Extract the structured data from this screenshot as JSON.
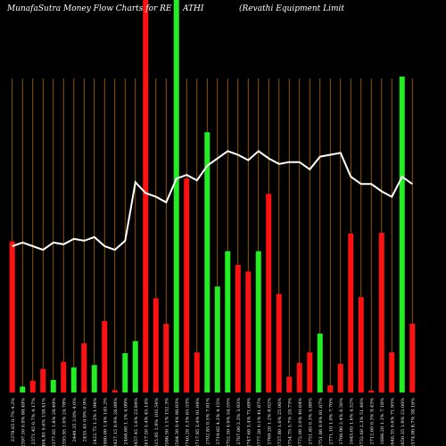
{
  "title_left": "MunafaSutra  Money Flow  Charts for RE",
  "title_mid": "ATHI",
  "title_right": "(Revathi    Equipment Limit",
  "colors": {
    "background": "#000000",
    "grid": "#b36b00",
    "up": "#22ee22",
    "down": "#ff1111",
    "line": "#ffffff",
    "text": "#ffffff"
  },
  "chart_data": {
    "type": "bar",
    "series_line": "price",
    "ylim_bar": [
      0,
      100
    ],
    "ylim_line": [
      0,
      100
    ],
    "bars": [
      {
        "value": 38.5,
        "color": "down"
      },
      {
        "value": 1.5,
        "color": "up"
      },
      {
        "value": 3,
        "color": "down"
      },
      {
        "value": 6,
        "color": "down"
      },
      {
        "value": 3.2,
        "color": "up"
      },
      {
        "value": 7.8,
        "color": "down"
      },
      {
        "value": 6.4,
        "color": "up"
      },
      {
        "value": 12.5,
        "color": "down"
      },
      {
        "value": 7,
        "color": "up"
      },
      {
        "value": 18.2,
        "color": "down"
      },
      {
        "value": 0.6,
        "color": "down"
      },
      {
        "value": 10,
        "color": "up"
      },
      {
        "value": 13.1,
        "color": "up"
      },
      {
        "value": 100,
        "color": "down"
      },
      {
        "value": 24,
        "color": "down"
      },
      {
        "value": 17.5,
        "color": "down"
      },
      {
        "value": 100,
        "color": "up"
      },
      {
        "value": 54.5,
        "color": "down"
      },
      {
        "value": 10.2,
        "color": "down"
      },
      {
        "value": 66.3,
        "color": "up"
      },
      {
        "value": 27,
        "color": "up"
      },
      {
        "value": 36,
        "color": "up"
      },
      {
        "value": 32.5,
        "color": "down"
      },
      {
        "value": 30.8,
        "color": "down"
      },
      {
        "value": 36,
        "color": "up"
      },
      {
        "value": 50.6,
        "color": "down"
      },
      {
        "value": 25.1,
        "color": "down"
      },
      {
        "value": 4,
        "color": "down"
      },
      {
        "value": 7.5,
        "color": "down"
      },
      {
        "value": 10.2,
        "color": "down"
      },
      {
        "value": 15,
        "color": "up"
      },
      {
        "value": 1.8,
        "color": "down"
      },
      {
        "value": 7.3,
        "color": "down"
      },
      {
        "value": 40.5,
        "color": "down"
      },
      {
        "value": 24.3,
        "color": "down"
      },
      {
        "value": 0.5,
        "color": "down"
      },
      {
        "value": 40.7,
        "color": "down"
      },
      {
        "value": 10.2,
        "color": "down"
      },
      {
        "value": 80.5,
        "color": "up"
      },
      {
        "value": 17.5,
        "color": "down"
      }
    ],
    "line_values": [
      40,
      41,
      40,
      39,
      41,
      40.5,
      42,
      41.5,
      42.5,
      40,
      39,
      41.5,
      57.5,
      54.5,
      53.5,
      52,
      58.5,
      59.5,
      58,
      62,
      64,
      66,
      65,
      63.5,
      66,
      64,
      62.5,
      63,
      63,
      61,
      64.5,
      65,
      65.5,
      59,
      57,
      57,
      55,
      53.5,
      59,
      57
    ],
    "x_tick_labels": [
      "2378.65 0.7% 4.3%",
      "2397.50 0.9% 88.49%",
      "2371.45 0.7% 4.17%",
      "2404.85 0.6% 138.41%",
      "2377.05 1.8% 28.49%",
      "2393.95 1.0% 24.78%",
      "2449.35 2.0% 4.0%",
      "2435.45 0.9% 0.9%",
      "2422.75 1.2% 1.94%",
      "2480.00 1.4% 145.2%",
      "2427.15 0.9% 26.08%",
      "2466.60 1.1% 4.09%",
      "2457.45 1.6% 23.84%",
      "2617.50 5.4% 45.14%",
      "2615.95 1.9% 105.54%",
      "2586.50 1.1% 152.3%",
      "2564.30 0.4% 86.03%",
      "2740.20 3.3% 65.53%",
      "2717.95 3.4% 91.04%",
      "2702.85 0.5% 7.81%",
      "2719.85 4.2% 4.15%",
      "2752.50 0.9% 54.55%",
      "2767.00 2.3% 3.93%",
      "2747.60 3.4% 71.69%",
      "2777.30 0.1% 41.87%",
      "2769.20 1.2% 8.02%",
      "2737.80 1.6% 25.06%",
      "2754.75 5.7% 20.73%",
      "2772.00 3.0% 40.64%",
      "2751.85 0.3% 5.88%",
      "1751.80 0.9% 81.67%",
      "2771.10 1.9% 7.70%",
      "1706.90 2.4% 6.56%",
      "1645.05 1.6% 4.52%",
      "2732.60 2.3% 51.46%",
      "2712.60 0.3% 9.43%",
      "1686.20 1.3% 7.18%",
      "1646.35 0.6% 71.95%",
      "1650.35 1.9% 22.00%",
      "1574.90 8.7% 38.16%"
    ]
  }
}
